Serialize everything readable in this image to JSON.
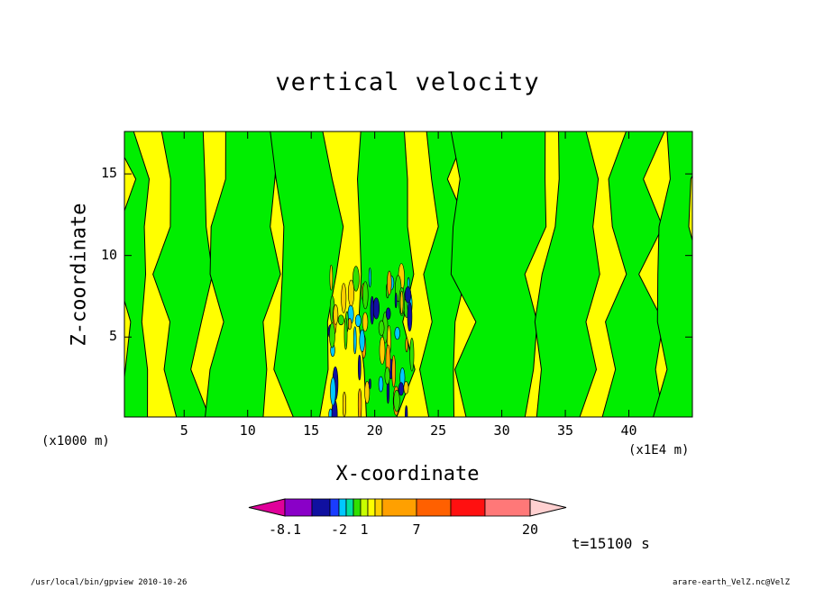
{
  "chart_data": {
    "type": "heatmap",
    "title": "vertical velocity",
    "xlabel": "X-coordinate",
    "ylabel": "Z-coordinate",
    "x_unit_label": "(x1E4 m)",
    "y_unit_label": "(x1000 m)",
    "xlim": [
      0.3,
      45
    ],
    "ylim": [
      0.1,
      17.6
    ],
    "x_ticks": [
      5,
      10,
      15,
      20,
      25,
      30,
      35,
      40
    ],
    "y_ticks": [
      5,
      10,
      15
    ],
    "field_note_levels": [
      -8.1,
      -2,
      1,
      7,
      20
    ],
    "colorbar": {
      "tick_labels": [
        "-8.1",
        "-2",
        "1",
        "7",
        "20"
      ],
      "colors": [
        "#e0009a",
        "#8a00c8",
        "#1010a0",
        "#1a3cff",
        "#00c8ff",
        "#00e0a0",
        "#30e000",
        "#c8ff00",
        "#ffff00",
        "#ffd000",
        "#ffa000",
        "#ff6000",
        "#ff1010",
        "#ff7878",
        "#ffb4b4",
        "#ffd0d0"
      ]
    },
    "dominant_colors": {
      "positive": "#ffff00",
      "negative": "#00ee00"
    },
    "time_label": "t=15100 s"
  },
  "footer": {
    "left": "/usr/local/bin/gpview   2010-10-26",
    "right": "arare-earth_VelZ.nc@VelZ"
  }
}
